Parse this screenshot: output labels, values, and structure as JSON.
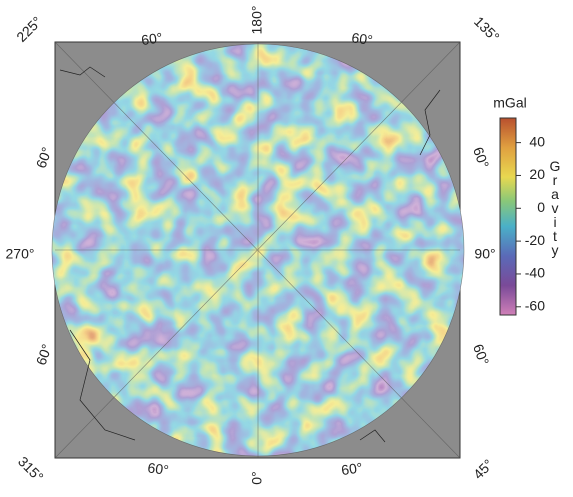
{
  "map": {
    "graticule_labels": [
      "225°",
      "60°",
      "180°",
      "60°",
      "135°",
      "60°",
      "60°",
      "270°",
      "90°",
      "60°",
      "60°",
      "315°",
      "60°",
      "0°",
      "60°",
      "45°"
    ],
    "colorbar": {
      "unit": "mGal",
      "title": "Gravity",
      "lim": [
        -65,
        55
      ],
      "ticks": [
        40,
        20,
        0,
        -20,
        -40,
        -60
      ]
    }
  }
}
